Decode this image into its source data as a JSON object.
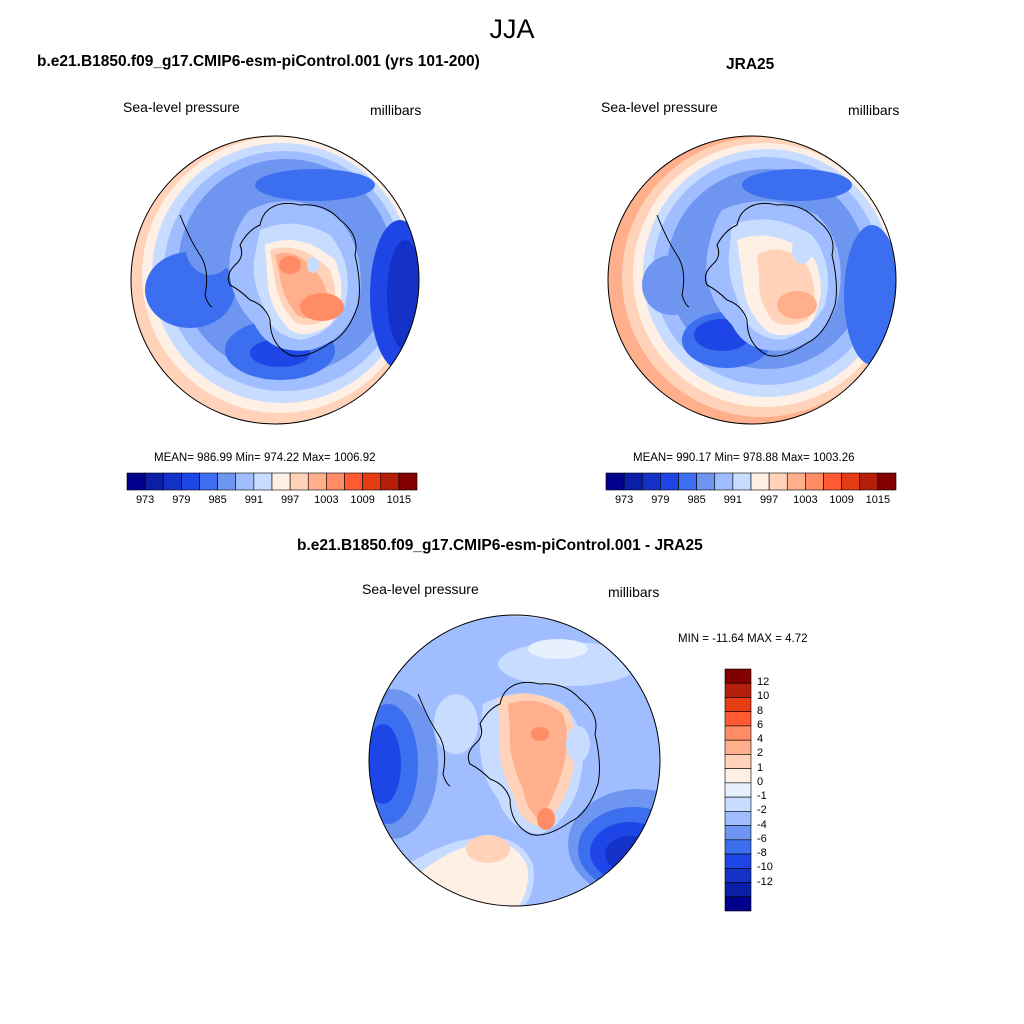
{
  "title": "JJA",
  "panels": [
    {
      "title": "b.e21.B1850.f09_g17.CMIP6-esm-piControl.001 (yrs 101-200)",
      "left_label": "Sea-level pressure",
      "right_label": "millibars",
      "stats": "MEAN= 986.99  Min= 974.22  Max= 1006.92",
      "colorbar_labels": [
        "973",
        "979",
        "985",
        "991",
        "997",
        "1003",
        "1009",
        "1015"
      ]
    },
    {
      "title": "JRA25",
      "left_label": "Sea-level pressure",
      "right_label": "millibars",
      "stats": "MEAN= 990.17  Min= 978.88  Max= 1003.26",
      "colorbar_labels": [
        "973",
        "979",
        "985",
        "991",
        "997",
        "1003",
        "1009",
        "1015"
      ]
    },
    {
      "title": "b.e21.B1850.f09_g17.CMIP6-esm-piControl.001 - JRA25",
      "left_label": "Sea-level pressure",
      "right_label": "millibars",
      "stats": "MIN = -11.64 MAX =   4.72",
      "colorbar_labels": [
        "12",
        "10",
        "8",
        "6",
        "4",
        "2",
        "1",
        "0",
        "-1",
        "-2",
        "-4",
        "-6",
        "-8",
        "-10",
        "-12"
      ]
    }
  ],
  "colors": {
    "seq_palette": [
      "#00008c",
      "#0a1ea8",
      "#1432c8",
      "#1e46e6",
      "#3c6ef0",
      "#6e96f0",
      "#a0beff",
      "#c8dcff",
      "#fff0e6",
      "#ffd2b9",
      "#ffaf8c",
      "#ff8c64",
      "#ff5a32",
      "#e63c14",
      "#b41e0a",
      "#820000"
    ],
    "diff_palette": [
      "#820000",
      "#b41e0a",
      "#e63c14",
      "#ff5a32",
      "#ff8c64",
      "#ffaf8c",
      "#ffd2b9",
      "#fff0e6",
      "#e6f0ff",
      "#c8dcff",
      "#a0beff",
      "#6e96f0",
      "#3c6ef0",
      "#1e46e6",
      "#1432c8",
      "#0a1ea8",
      "#00008c"
    ]
  }
}
